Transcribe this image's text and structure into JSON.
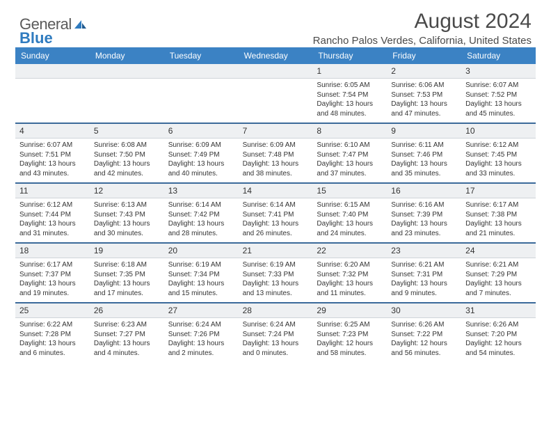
{
  "logo": {
    "text1": "General",
    "text2": "Blue"
  },
  "title": {
    "month": "August 2024",
    "location": "Rancho Palos Verdes, California, United States"
  },
  "colors": {
    "header_bg": "#3b82c4",
    "header_fg": "#ffffff",
    "sep": "#3b6a9a",
    "daynum_bg": "#eef0f2",
    "text": "#333333"
  },
  "daynames": [
    "Sunday",
    "Monday",
    "Tuesday",
    "Wednesday",
    "Thursday",
    "Friday",
    "Saturday"
  ],
  "weeks": [
    [
      {
        "n": "",
        "sr": "",
        "ss": "",
        "dl": ""
      },
      {
        "n": "",
        "sr": "",
        "ss": "",
        "dl": ""
      },
      {
        "n": "",
        "sr": "",
        "ss": "",
        "dl": ""
      },
      {
        "n": "",
        "sr": "",
        "ss": "",
        "dl": ""
      },
      {
        "n": "1",
        "sr": "Sunrise: 6:05 AM",
        "ss": "Sunset: 7:54 PM",
        "dl": "Daylight: 13 hours and 48 minutes."
      },
      {
        "n": "2",
        "sr": "Sunrise: 6:06 AM",
        "ss": "Sunset: 7:53 PM",
        "dl": "Daylight: 13 hours and 47 minutes."
      },
      {
        "n": "3",
        "sr": "Sunrise: 6:07 AM",
        "ss": "Sunset: 7:52 PM",
        "dl": "Daylight: 13 hours and 45 minutes."
      }
    ],
    [
      {
        "n": "4",
        "sr": "Sunrise: 6:07 AM",
        "ss": "Sunset: 7:51 PM",
        "dl": "Daylight: 13 hours and 43 minutes."
      },
      {
        "n": "5",
        "sr": "Sunrise: 6:08 AM",
        "ss": "Sunset: 7:50 PM",
        "dl": "Daylight: 13 hours and 42 minutes."
      },
      {
        "n": "6",
        "sr": "Sunrise: 6:09 AM",
        "ss": "Sunset: 7:49 PM",
        "dl": "Daylight: 13 hours and 40 minutes."
      },
      {
        "n": "7",
        "sr": "Sunrise: 6:09 AM",
        "ss": "Sunset: 7:48 PM",
        "dl": "Daylight: 13 hours and 38 minutes."
      },
      {
        "n": "8",
        "sr": "Sunrise: 6:10 AM",
        "ss": "Sunset: 7:47 PM",
        "dl": "Daylight: 13 hours and 37 minutes."
      },
      {
        "n": "9",
        "sr": "Sunrise: 6:11 AM",
        "ss": "Sunset: 7:46 PM",
        "dl": "Daylight: 13 hours and 35 minutes."
      },
      {
        "n": "10",
        "sr": "Sunrise: 6:12 AM",
        "ss": "Sunset: 7:45 PM",
        "dl": "Daylight: 13 hours and 33 minutes."
      }
    ],
    [
      {
        "n": "11",
        "sr": "Sunrise: 6:12 AM",
        "ss": "Sunset: 7:44 PM",
        "dl": "Daylight: 13 hours and 31 minutes."
      },
      {
        "n": "12",
        "sr": "Sunrise: 6:13 AM",
        "ss": "Sunset: 7:43 PM",
        "dl": "Daylight: 13 hours and 30 minutes."
      },
      {
        "n": "13",
        "sr": "Sunrise: 6:14 AM",
        "ss": "Sunset: 7:42 PM",
        "dl": "Daylight: 13 hours and 28 minutes."
      },
      {
        "n": "14",
        "sr": "Sunrise: 6:14 AM",
        "ss": "Sunset: 7:41 PM",
        "dl": "Daylight: 13 hours and 26 minutes."
      },
      {
        "n": "15",
        "sr": "Sunrise: 6:15 AM",
        "ss": "Sunset: 7:40 PM",
        "dl": "Daylight: 13 hours and 24 minutes."
      },
      {
        "n": "16",
        "sr": "Sunrise: 6:16 AM",
        "ss": "Sunset: 7:39 PM",
        "dl": "Daylight: 13 hours and 23 minutes."
      },
      {
        "n": "17",
        "sr": "Sunrise: 6:17 AM",
        "ss": "Sunset: 7:38 PM",
        "dl": "Daylight: 13 hours and 21 minutes."
      }
    ],
    [
      {
        "n": "18",
        "sr": "Sunrise: 6:17 AM",
        "ss": "Sunset: 7:37 PM",
        "dl": "Daylight: 13 hours and 19 minutes."
      },
      {
        "n": "19",
        "sr": "Sunrise: 6:18 AM",
        "ss": "Sunset: 7:35 PM",
        "dl": "Daylight: 13 hours and 17 minutes."
      },
      {
        "n": "20",
        "sr": "Sunrise: 6:19 AM",
        "ss": "Sunset: 7:34 PM",
        "dl": "Daylight: 13 hours and 15 minutes."
      },
      {
        "n": "21",
        "sr": "Sunrise: 6:19 AM",
        "ss": "Sunset: 7:33 PM",
        "dl": "Daylight: 13 hours and 13 minutes."
      },
      {
        "n": "22",
        "sr": "Sunrise: 6:20 AM",
        "ss": "Sunset: 7:32 PM",
        "dl": "Daylight: 13 hours and 11 minutes."
      },
      {
        "n": "23",
        "sr": "Sunrise: 6:21 AM",
        "ss": "Sunset: 7:31 PM",
        "dl": "Daylight: 13 hours and 9 minutes."
      },
      {
        "n": "24",
        "sr": "Sunrise: 6:21 AM",
        "ss": "Sunset: 7:29 PM",
        "dl": "Daylight: 13 hours and 7 minutes."
      }
    ],
    [
      {
        "n": "25",
        "sr": "Sunrise: 6:22 AM",
        "ss": "Sunset: 7:28 PM",
        "dl": "Daylight: 13 hours and 6 minutes."
      },
      {
        "n": "26",
        "sr": "Sunrise: 6:23 AM",
        "ss": "Sunset: 7:27 PM",
        "dl": "Daylight: 13 hours and 4 minutes."
      },
      {
        "n": "27",
        "sr": "Sunrise: 6:24 AM",
        "ss": "Sunset: 7:26 PM",
        "dl": "Daylight: 13 hours and 2 minutes."
      },
      {
        "n": "28",
        "sr": "Sunrise: 6:24 AM",
        "ss": "Sunset: 7:24 PM",
        "dl": "Daylight: 13 hours and 0 minutes."
      },
      {
        "n": "29",
        "sr": "Sunrise: 6:25 AM",
        "ss": "Sunset: 7:23 PM",
        "dl": "Daylight: 12 hours and 58 minutes."
      },
      {
        "n": "30",
        "sr": "Sunrise: 6:26 AM",
        "ss": "Sunset: 7:22 PM",
        "dl": "Daylight: 12 hours and 56 minutes."
      },
      {
        "n": "31",
        "sr": "Sunrise: 6:26 AM",
        "ss": "Sunset: 7:20 PM",
        "dl": "Daylight: 12 hours and 54 minutes."
      }
    ]
  ]
}
